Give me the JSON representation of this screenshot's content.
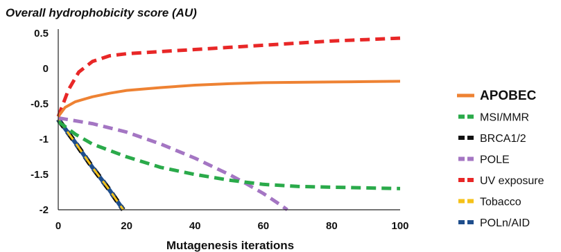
{
  "chart_data": {
    "type": "line",
    "title": "Overall hydrophobicity score (AU)",
    "xlabel": "Mutagenesis iterations",
    "ylabel": "",
    "xlim": [
      0,
      100
    ],
    "ylim": [
      -2,
      0.5
    ],
    "xticks": [
      "0",
      "20",
      "40",
      "60",
      "80",
      "100"
    ],
    "yticks": [
      "0.5",
      "0",
      "-0.5",
      "-1",
      "-1.5",
      "-2"
    ],
    "grid": false,
    "legend_position": "right",
    "series": [
      {
        "name": "APOBEC",
        "color": "#ee8233",
        "dash": false,
        "bold": true,
        "x": [
          0,
          2,
          5,
          10,
          15,
          20,
          30,
          40,
          50,
          60,
          70,
          80,
          90,
          100
        ],
        "y": [
          -0.68,
          -0.55,
          -0.47,
          -0.4,
          -0.35,
          -0.31,
          -0.27,
          -0.235,
          -0.215,
          -0.2,
          -0.195,
          -0.19,
          -0.185,
          -0.18
        ]
      },
      {
        "name": "MSI/MMR",
        "color": "#2aaa4a",
        "dash": true,
        "bold": false,
        "x": [
          0,
          5,
          10,
          20,
          30,
          40,
          50,
          60,
          70,
          80,
          90,
          100
        ],
        "y": [
          -0.75,
          -0.93,
          -1.07,
          -1.25,
          -1.4,
          -1.5,
          -1.58,
          -1.64,
          -1.67,
          -1.68,
          -1.69,
          -1.7
        ]
      },
      {
        "name": "BRCA1/2",
        "color": "#111111",
        "dash": true,
        "bold": false,
        "x": [
          0,
          5,
          10,
          15,
          19
        ],
        "y": [
          -0.72,
          -1.05,
          -1.4,
          -1.72,
          -2.0
        ]
      },
      {
        "name": "POLE",
        "color": "#a476c3",
        "dash": true,
        "bold": false,
        "x": [
          0,
          10,
          20,
          30,
          40,
          50,
          55,
          60,
          65,
          67
        ],
        "y": [
          -0.7,
          -0.78,
          -0.9,
          -1.07,
          -1.27,
          -1.5,
          -1.63,
          -1.77,
          -1.93,
          -2.0
        ]
      },
      {
        "name": "UV exposure",
        "color": "#e82727",
        "dash": true,
        "bold": false,
        "x": [
          0,
          3,
          6,
          10,
          15,
          20,
          30,
          40,
          50,
          60,
          70,
          80,
          90,
          100
        ],
        "y": [
          -0.68,
          -0.3,
          -0.05,
          0.1,
          0.18,
          0.21,
          0.24,
          0.27,
          0.3,
          0.33,
          0.36,
          0.39,
          0.41,
          0.43
        ]
      },
      {
        "name": "Tobacco",
        "color": "#f5c21a",
        "dash": true,
        "bold": false,
        "x": [
          0,
          5,
          10,
          15,
          19
        ],
        "y": [
          -0.72,
          -1.05,
          -1.4,
          -1.72,
          -2.0
        ]
      },
      {
        "name": "POLn/AID",
        "color": "#1f4e8c",
        "dash": true,
        "bold": false,
        "x": [
          0,
          5,
          10,
          15,
          19
        ],
        "y": [
          -0.72,
          -1.05,
          -1.4,
          -1.72,
          -2.0
        ]
      }
    ]
  }
}
